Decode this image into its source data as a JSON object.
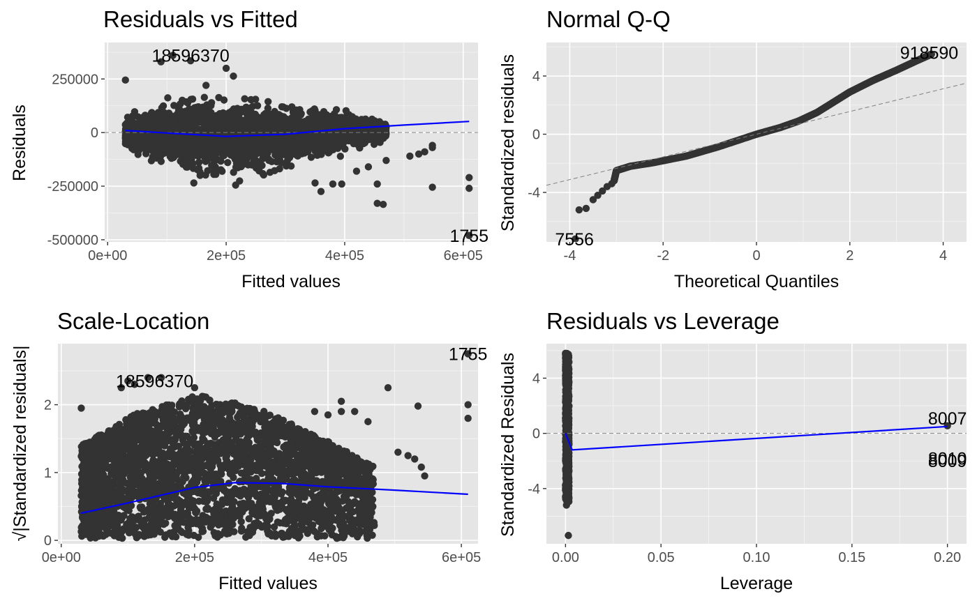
{
  "colors": {
    "panel_bg": "#e5e5e5",
    "grid_major": "#ffffff",
    "points": "#333333",
    "smooth": "#0000ff",
    "reference": "#7f7f7f",
    "text": "#000000",
    "tick_text": "#4d4d4d"
  },
  "chart_data": [
    {
      "type": "scatter",
      "title": "Residuals vs Fitted",
      "xlabel": "Fitted values",
      "ylabel": "Residuals",
      "xlim": [
        -5000,
        625000
      ],
      "ylim": [
        -510000,
        420000
      ],
      "x_ticks": [
        {
          "value": 0,
          "label": "0e+00"
        },
        {
          "value": 200000,
          "label": "2e+05"
        },
        {
          "value": 400000,
          "label": "4e+05"
        },
        {
          "value": 600000,
          "label": "6e+05"
        }
      ],
      "y_ticks": [
        {
          "value": -500000,
          "label": "-500000"
        },
        {
          "value": -250000,
          "label": "-250000"
        },
        {
          "value": 0,
          "label": "0"
        },
        {
          "value": 250000,
          "label": "250000"
        }
      ],
      "reference_line": {
        "y": 0,
        "style": "dashed"
      },
      "cloud": {
        "x_start": 30000,
        "x_end": 470000,
        "center": [
          -10000,
          -5000,
          -20000,
          0,
          10000
        ],
        "spread": [
          55000,
          170000,
          180000,
          110000,
          40000
        ]
      },
      "points": [
        [
          30000,
          245000
        ],
        [
          90000,
          330000
        ],
        [
          110000,
          360000
        ],
        [
          140000,
          335000
        ],
        [
          200000,
          300000
        ],
        [
          380000,
          -240000
        ],
        [
          395000,
          -240000
        ],
        [
          360000,
          -275000
        ],
        [
          350000,
          -235000
        ],
        [
          420000,
          -180000
        ],
        [
          440000,
          -160000
        ],
        [
          455000,
          -330000
        ],
        [
          465000,
          -335000
        ],
        [
          455000,
          -240000
        ],
        [
          470000,
          -130000
        ],
        [
          510000,
          -110000
        ],
        [
          525000,
          -100000
        ],
        [
          535000,
          -90000
        ],
        [
          548000,
          -60000
        ],
        [
          548000,
          -70000
        ],
        [
          548000,
          -255000
        ],
        [
          610000,
          -210000
        ],
        [
          610000,
          -260000
        ],
        [
          610000,
          -480000
        ]
      ],
      "smooth": [
        [
          30000,
          10000
        ],
        [
          100000,
          -2000
        ],
        [
          200000,
          -18000
        ],
        [
          300000,
          -8000
        ],
        [
          400000,
          18000
        ],
        [
          500000,
          35000
        ],
        [
          610000,
          52000
        ]
      ],
      "annotations": [
        {
          "text": "18596370",
          "x": 140000,
          "y": 360000
        },
        {
          "text": "1755",
          "x": 610000,
          "y": -480000
        }
      ]
    },
    {
      "type": "scatter",
      "title": "Normal Q-Q",
      "xlabel": "Theoretical Quantiles",
      "ylabel": "Standardized residuals",
      "xlim": [
        -4.5,
        4.5
      ],
      "ylim": [
        -7.4,
        6.3
      ],
      "x_ticks": [
        {
          "value": -4,
          "label": "-4"
        },
        {
          "value": -2,
          "label": "-2"
        },
        {
          "value": 0,
          "label": "0"
        },
        {
          "value": 2,
          "label": "2"
        },
        {
          "value": 4,
          "label": "4"
        }
      ],
      "y_ticks": [
        {
          "value": -4,
          "label": "-4"
        },
        {
          "value": 0,
          "label": "0"
        },
        {
          "value": 4,
          "label": "4"
        }
      ],
      "reference_line": {
        "slope": 0.78,
        "intercept": 0,
        "style": "dashed"
      },
      "curve": [
        [
          -3.05,
          -3.2
        ],
        [
          -3.0,
          -2.5
        ],
        [
          -2.7,
          -2.2
        ],
        [
          -2.2,
          -1.95
        ],
        [
          -1.5,
          -1.5
        ],
        [
          -0.8,
          -0.85
        ],
        [
          0.0,
          0.0
        ],
        [
          0.5,
          0.45
        ],
        [
          0.9,
          0.9
        ],
        [
          1.3,
          1.5
        ],
        [
          1.7,
          2.3
        ],
        [
          2.0,
          2.9
        ],
        [
          2.5,
          3.7
        ],
        [
          3.0,
          4.4
        ],
        [
          3.4,
          5.0
        ],
        [
          3.75,
          5.5
        ]
      ],
      "points": [
        [
          -3.8,
          -5.2
        ],
        [
          -3.65,
          -5.1
        ],
        [
          -3.5,
          -4.5
        ],
        [
          -3.4,
          -4.2
        ],
        [
          -3.3,
          -3.9
        ],
        [
          -3.2,
          -3.6
        ],
        [
          -3.1,
          -3.4
        ],
        [
          -3.88,
          -7.2
        ]
      ],
      "annotations": [
        {
          "text": "7556",
          "x": -3.9,
          "y": -7.2
        },
        {
          "text": "918590",
          "x": 3.7,
          "y": 5.6
        }
      ]
    },
    {
      "type": "scatter",
      "title": "Scale-Location",
      "xlabel": "Fitted values",
      "ylabel": "√|Standardized residuals|",
      "xlim": [
        -5000,
        625000
      ],
      "ylim": [
        -0.05,
        2.9
      ],
      "x_ticks": [
        {
          "value": 0,
          "label": "0e+00"
        },
        {
          "value": 200000,
          "label": "2e+05"
        },
        {
          "value": 400000,
          "label": "4e+05"
        },
        {
          "value": 600000,
          "label": "6e+05"
        }
      ],
      "y_ticks": [
        {
          "value": 0,
          "label": "0"
        },
        {
          "value": 1,
          "label": "1"
        },
        {
          "value": 2,
          "label": "2"
        }
      ],
      "cloud": {
        "x_start": 30000,
        "x_end": 470000,
        "upper": [
          1.4,
          1.9,
          2.15,
          1.95,
          1.55,
          1.1
        ],
        "lower": 0.03
      },
      "points": [
        [
          30000,
          1.95
        ],
        [
          90000,
          2.25
        ],
        [
          100000,
          2.35
        ],
        [
          110000,
          2.3
        ],
        [
          130000,
          2.4
        ],
        [
          150000,
          2.4
        ],
        [
          200000,
          2.25
        ],
        [
          380000,
          1.9
        ],
        [
          400000,
          1.85
        ],
        [
          420000,
          1.9
        ],
        [
          440000,
          1.9
        ],
        [
          460000,
          1.75
        ],
        [
          490000,
          2.25
        ],
        [
          420000,
          2.05
        ],
        [
          505000,
          1.3
        ],
        [
          520000,
          1.25
        ],
        [
          530000,
          1.2
        ],
        [
          540000,
          1.08
        ],
        [
          545000,
          0.95
        ],
        [
          535000,
          1.98
        ],
        [
          610000,
          2.0
        ],
        [
          610000,
          1.8
        ],
        [
          610000,
          2.75
        ]
      ],
      "smooth": [
        [
          30000,
          0.4
        ],
        [
          100000,
          0.55
        ],
        [
          200000,
          0.78
        ],
        [
          260000,
          0.85
        ],
        [
          330000,
          0.84
        ],
        [
          400000,
          0.79
        ],
        [
          500000,
          0.74
        ],
        [
          610000,
          0.68
        ]
      ],
      "annotations": [
        {
          "text": "18596370",
          "x": 140000,
          "y": 2.35
        },
        {
          "text": "1755",
          "x": 610000,
          "y": 2.75
        }
      ]
    },
    {
      "type": "scatter",
      "title": "Residuals vs Leverage",
      "xlabel": "Leverage",
      "ylabel": "Standardized Residuals",
      "xlim": [
        -0.01,
        0.21
      ],
      "ylim": [
        -8.0,
        6.5
      ],
      "x_ticks": [
        {
          "value": 0.0,
          "label": "0.00"
        },
        {
          "value": 0.05,
          "label": "0.05"
        },
        {
          "value": 0.1,
          "label": "0.10"
        },
        {
          "value": 0.15,
          "label": "0.15"
        },
        {
          "value": 0.2,
          "label": "0.20"
        }
      ],
      "y_ticks": [
        {
          "value": -4,
          "label": "-4"
        },
        {
          "value": 0,
          "label": "0"
        },
        {
          "value": 4,
          "label": "4"
        }
      ],
      "reference_line": {
        "y": 0,
        "style": "dashed"
      },
      "strip": {
        "x_min": 0.0,
        "x_max": 0.0018,
        "y_min": -5.0,
        "y_max": 5.8
      },
      "points": [
        [
          0.0,
          5.8
        ],
        [
          0.0005,
          -5.2
        ],
        [
          0.0015,
          -7.4
        ],
        [
          0.2,
          0.55
        ]
      ],
      "smooth": [
        [
          0.0,
          0.0
        ],
        [
          0.0015,
          -0.5
        ],
        [
          0.0035,
          -1.2
        ],
        [
          0.2,
          0.5
        ]
      ],
      "annotations": [
        {
          "text": "8007",
          "x": 0.2,
          "y": 1.1
        },
        {
          "text": "8010",
          "x": 0.2,
          "y": -1.8
        },
        {
          "text": "8009",
          "x": 0.2,
          "y": -2.0
        }
      ]
    }
  ]
}
